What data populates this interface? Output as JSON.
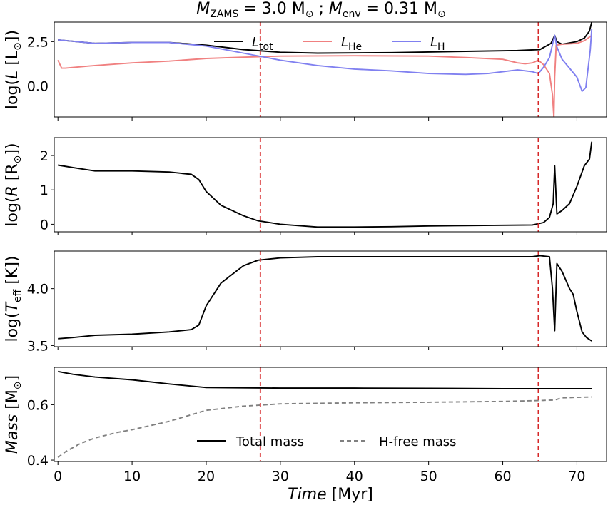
{
  "chart_data": {
    "type": "line",
    "title": {
      "m1": "M",
      "m1_sub": "ZAMS",
      "m1_val": " = 3.0 M",
      "sun": "⊙",
      "sep": " ; ",
      "m2": "M",
      "m2_sub": "env",
      "m2_val": " = 0.31 M"
    },
    "xlabel": {
      "var": "Time",
      "unit": " [Myr]"
    },
    "xlim": [
      -0.5,
      74
    ],
    "xticks": [
      0,
      10,
      20,
      30,
      40,
      50,
      60,
      70
    ],
    "vlines": [
      27.3,
      64.8
    ],
    "vline_color": "#d62728",
    "panels": [
      {
        "id": "lum",
        "ylabel": {
          "pre": "log(",
          "var": "L",
          "unit": " [L",
          "sun": "⊙",
          "post": "])"
        },
        "ylim": [
          -1.75,
          3.6
        ],
        "yticks": [
          0.0,
          2.5
        ],
        "yticklabels": [
          "0.0",
          "2.5"
        ],
        "series": [
          {
            "name": "L_tot",
            "color": "#000000",
            "width": 1.9,
            "dash": "",
            "points": [
              [
                0,
                2.6
              ],
              [
                2,
                2.52
              ],
              [
                5,
                2.4
              ],
              [
                10,
                2.45
              ],
              [
                15,
                2.45
              ],
              [
                20,
                2.3
              ],
              [
                25,
                2.05
              ],
              [
                30,
                1.9
              ],
              [
                35,
                1.85
              ],
              [
                45,
                1.88
              ],
              [
                55,
                1.95
              ],
              [
                62,
                2.0
              ],
              [
                65,
                2.05
              ],
              [
                66.5,
                2.4
              ],
              [
                67,
                2.85
              ],
              [
                67.3,
                2.5
              ],
              [
                68,
                2.35
              ],
              [
                70,
                2.5
              ],
              [
                71,
                2.7
              ],
              [
                71.7,
                3.1
              ],
              [
                72,
                3.6
              ]
            ]
          },
          {
            "name": "L_He",
            "color": "#f08080",
            "width": 1.9,
            "dash": "",
            "points": [
              [
                0,
                1.45
              ],
              [
                0.5,
                1.0
              ],
              [
                1,
                1.0
              ],
              [
                5,
                1.15
              ],
              [
                10,
                1.3
              ],
              [
                15,
                1.4
              ],
              [
                20,
                1.55
              ],
              [
                25,
                1.62
              ],
              [
                30,
                1.68
              ],
              [
                40,
                1.7
              ],
              [
                50,
                1.68
              ],
              [
                55,
                1.6
              ],
              [
                60,
                1.5
              ],
              [
                62,
                1.3
              ],
              [
                63,
                1.25
              ],
              [
                64,
                1.3
              ],
              [
                64.8,
                1.45
              ],
              [
                65.5,
                1.2
              ],
              [
                66.3,
                0.7
              ],
              [
                66.7,
                -0.5
              ],
              [
                66.9,
                -1.8
              ],
              [
                67,
                0.5
              ],
              [
                67.2,
                2.3
              ],
              [
                68,
                2.35
              ],
              [
                70,
                2.4
              ],
              [
                71,
                2.55
              ],
              [
                72,
                2.85
              ]
            ]
          },
          {
            "name": "L_H",
            "color": "#8080f0",
            "width": 1.9,
            "dash": "",
            "points": [
              [
                0,
                2.6
              ],
              [
                2,
                2.52
              ],
              [
                5,
                2.4
              ],
              [
                10,
                2.45
              ],
              [
                15,
                2.45
              ],
              [
                20,
                2.25
              ],
              [
                25,
                1.85
              ],
              [
                30,
                1.45
              ],
              [
                35,
                1.15
              ],
              [
                40,
                0.95
              ],
              [
                45,
                0.85
              ],
              [
                50,
                0.7
              ],
              [
                55,
                0.65
              ],
              [
                58,
                0.7
              ],
              [
                60,
                0.8
              ],
              [
                62,
                0.9
              ],
              [
                64,
                0.8
              ],
              [
                64.8,
                0.7
              ],
              [
                65.5,
                1.05
              ],
              [
                66.3,
                1.6
              ],
              [
                66.8,
                2.5
              ],
              [
                67,
                2.85
              ],
              [
                67.3,
                2.2
              ],
              [
                68,
                1.5
              ],
              [
                69,
                1.0
              ],
              [
                70,
                0.5
              ],
              [
                70.7,
                -0.3
              ],
              [
                71.2,
                -0.1
              ],
              [
                71.8,
                2.0
              ],
              [
                72,
                3.2
              ]
            ]
          }
        ]
      },
      {
        "id": "rad",
        "ylabel": {
          "pre": "log(",
          "var": "R",
          "unit": " [R",
          "sun": "⊙",
          "post": "])"
        },
        "ylim": [
          -0.22,
          2.52
        ],
        "yticks": [
          0,
          1,
          2
        ],
        "yticklabels": [
          "0",
          "1",
          "2"
        ],
        "series": [
          {
            "name": "R",
            "color": "#000000",
            "width": 1.9,
            "dash": "",
            "points": [
              [
                0,
                1.72
              ],
              [
                2,
                1.65
              ],
              [
                5,
                1.55
              ],
              [
                10,
                1.55
              ],
              [
                15,
                1.52
              ],
              [
                18,
                1.45
              ],
              [
                19,
                1.3
              ],
              [
                20,
                0.95
              ],
              [
                22,
                0.55
              ],
              [
                25,
                0.25
              ],
              [
                27,
                0.1
              ],
              [
                30,
                0.0
              ],
              [
                35,
                -0.08
              ],
              [
                40,
                -0.08
              ],
              [
                45,
                -0.07
              ],
              [
                50,
                -0.05
              ],
              [
                55,
                -0.04
              ],
              [
                60,
                -0.03
              ],
              [
                64,
                -0.02
              ],
              [
                65.5,
                0.05
              ],
              [
                66.3,
                0.2
              ],
              [
                66.8,
                0.6
              ],
              [
                67,
                1.7
              ],
              [
                67.3,
                0.3
              ],
              [
                68,
                0.4
              ],
              [
                69,
                0.6
              ],
              [
                70,
                1.1
              ],
              [
                71,
                1.7
              ],
              [
                71.7,
                1.9
              ],
              [
                72,
                2.4
              ]
            ]
          }
        ]
      },
      {
        "id": "teff",
        "ylabel": {
          "pre": "log(",
          "var": "T",
          "varsub": "eff",
          "unit": " [K])",
          "sun": "",
          "post": ""
        },
        "ylim": [
          3.49,
          4.33
        ],
        "yticks": [
          3.5,
          4.0
        ],
        "yticklabels": [
          "3.5",
          "4.0"
        ],
        "series": [
          {
            "name": "Teff",
            "color": "#000000",
            "width": 1.9,
            "dash": "",
            "points": [
              [
                0,
                3.56
              ],
              [
                2,
                3.57
              ],
              [
                5,
                3.59
              ],
              [
                10,
                3.6
              ],
              [
                15,
                3.62
              ],
              [
                18,
                3.64
              ],
              [
                19,
                3.68
              ],
              [
                20,
                3.85
              ],
              [
                22,
                4.05
              ],
              [
                25,
                4.2
              ],
              [
                27,
                4.25
              ],
              [
                30,
                4.27
              ],
              [
                35,
                4.28
              ],
              [
                45,
                4.28
              ],
              [
                55,
                4.28
              ],
              [
                64,
                4.28
              ],
              [
                65,
                4.29
              ],
              [
                66.3,
                4.28
              ],
              [
                66.7,
                4.0
              ],
              [
                67,
                3.63
              ],
              [
                67.3,
                4.22
              ],
              [
                68,
                4.15
              ],
              [
                69,
                4.0
              ],
              [
                69.5,
                3.95
              ],
              [
                70,
                3.8
              ],
              [
                70.7,
                3.62
              ],
              [
                71.3,
                3.57
              ],
              [
                72,
                3.54
              ]
            ]
          }
        ]
      },
      {
        "id": "mass",
        "ylabel": {
          "pre": "",
          "var": "Mass",
          "unit": " [M",
          "sun": "⊙",
          "post": "]"
        },
        "ylim": [
          0.395,
          0.735
        ],
        "yticks": [
          0.4,
          0.6
        ],
        "yticklabels": [
          "0.4",
          "0.6"
        ],
        "series": [
          {
            "name": "Total mass",
            "color": "#000000",
            "width": 1.9,
            "dash": "",
            "points": [
              [
                0,
                0.72
              ],
              [
                2,
                0.71
              ],
              [
                5,
                0.7
              ],
              [
                10,
                0.69
              ],
              [
                15,
                0.675
              ],
              [
                20,
                0.662
              ],
              [
                30,
                0.66
              ],
              [
                40,
                0.66
              ],
              [
                50,
                0.659
              ],
              [
                60,
                0.658
              ],
              [
                72,
                0.658
              ]
            ]
          },
          {
            "name": "H-free mass",
            "color": "#808080",
            "width": 1.9,
            "dash": "6,4",
            "points": [
              [
                0,
                0.41
              ],
              [
                1,
                0.43
              ],
              [
                3,
                0.46
              ],
              [
                5,
                0.48
              ],
              [
                8,
                0.5
              ],
              [
                10,
                0.51
              ],
              [
                15,
                0.54
              ],
              [
                20,
                0.58
              ],
              [
                25,
                0.595
              ],
              [
                30,
                0.603
              ],
              [
                40,
                0.607
              ],
              [
                50,
                0.609
              ],
              [
                60,
                0.612
              ],
              [
                64.8,
                0.615
              ],
              [
                67,
                0.617
              ],
              [
                68,
                0.625
              ],
              [
                72,
                0.628
              ]
            ]
          }
        ]
      }
    ],
    "legend_lum": [
      {
        "label": "L",
        "sub": "tot",
        "color": "#000000"
      },
      {
        "label": "L",
        "sub": "He",
        "color": "#f08080"
      },
      {
        "label": "L",
        "sub": "H",
        "color": "#8080f0"
      }
    ],
    "legend_mass": [
      {
        "label": "Total mass",
        "color": "#000000",
        "dash": ""
      },
      {
        "label": "H-free mass",
        "color": "#808080",
        "dash": "6,4"
      }
    ]
  }
}
